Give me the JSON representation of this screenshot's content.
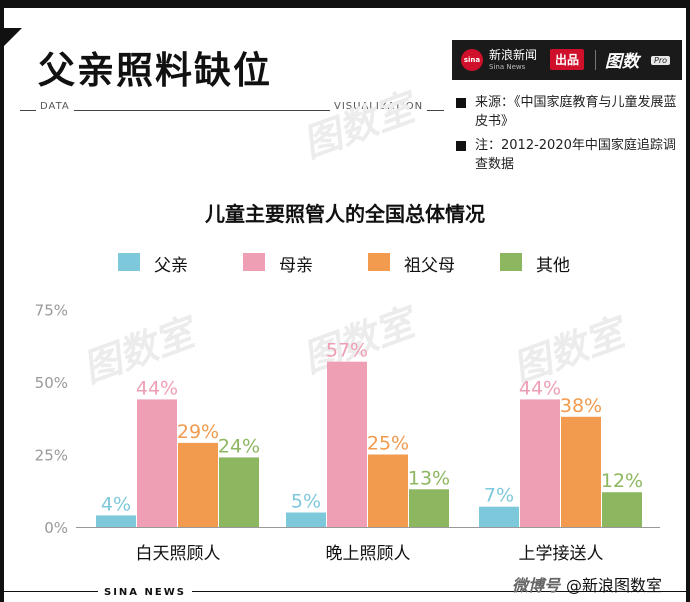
{
  "header": {
    "title": "父亲照料缺位",
    "rule_left": "DATA",
    "rule_right": "VISUALIZATION"
  },
  "brand": {
    "eye_text": "sina",
    "name": "新浪新闻",
    "sub": "Sina News",
    "badge": "出品",
    "logo": "图数",
    "pro": "Pro"
  },
  "notes": {
    "source": "来源：《中国家庭教育与儿童发展蓝皮书》",
    "note": "注：2012-2020年中国家庭追踪调查数据"
  },
  "footer": {
    "left": "SINA NEWS",
    "weibo_tag": "微博号",
    "account": "@新浪图数室"
  },
  "chart_data": {
    "type": "bar",
    "title": "儿童主要照管人的全国总体情况",
    "categories": [
      "白天照顾人",
      "晚上照顾人",
      "上学接送人"
    ],
    "series": [
      {
        "name": "父亲",
        "values": [
          4,
          5,
          7
        ],
        "color": "#7ec8db"
      },
      {
        "name": "母亲",
        "values": [
          44,
          57,
          44
        ],
        "color": "#ef9fb4"
      },
      {
        "name": "祖父母",
        "values": [
          29,
          25,
          38
        ],
        "color": "#f29a4d"
      },
      {
        "name": "其他",
        "values": [
          24,
          13,
          12
        ],
        "color": "#8db660"
      }
    ],
    "y_ticks": [
      "0%",
      "25%",
      "50%",
      "75%"
    ],
    "ylim": [
      0,
      75
    ],
    "value_suffix": "%",
    "legend_position": "top",
    "grid": false
  }
}
